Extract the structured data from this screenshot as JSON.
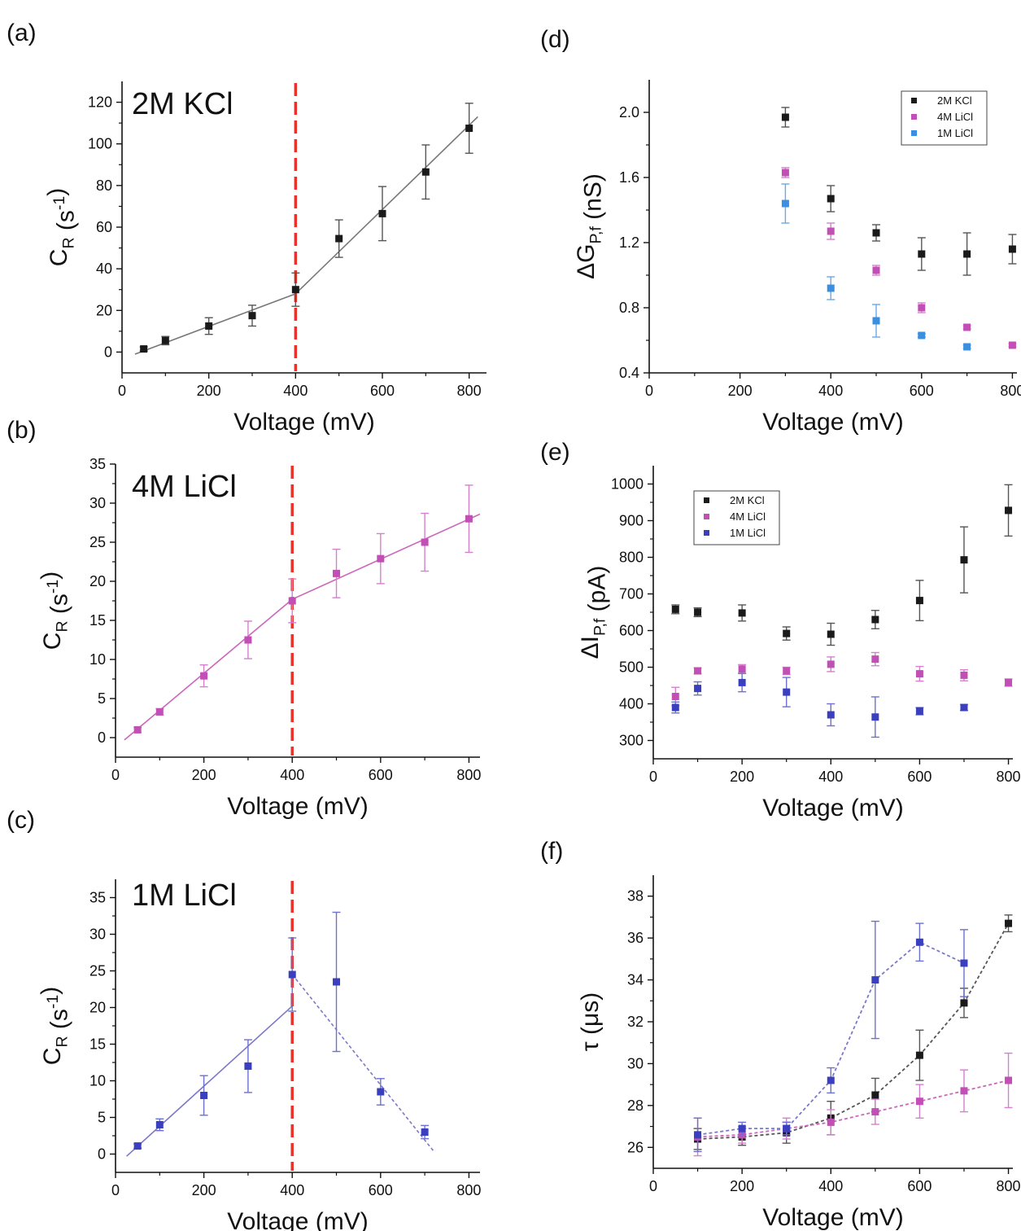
{
  "panel_labels": [
    "(a)",
    "(b)",
    "(c)",
    "(d)",
    "(e)",
    "(f)"
  ],
  "colors": {
    "black": "#1a1a1a",
    "pink": "#c24fb5",
    "pink_line": "#cc66bb",
    "blue_dark": "#3a3fbf",
    "blue_light": "#3a8fe0",
    "red_dash": "#e8322a",
    "gray_line": "#777777",
    "purple_line": "#7b78c9"
  },
  "chart_data": [
    {
      "panel": "(a)",
      "type": "scatter",
      "title": "2M KCl",
      "xlabel": "Voltage (mV)",
      "ylabel": "C_R (s^-1)",
      "xlim": [
        0,
        840
      ],
      "ylim": [
        -10,
        130
      ],
      "xticks": [
        0,
        200,
        400,
        600,
        800
      ],
      "yticks": [
        0,
        20,
        40,
        60,
        80,
        100,
        120
      ],
      "vline": 400,
      "series": [
        {
          "color": "black",
          "x": [
            50,
            100,
            200,
            300,
            400,
            500,
            600,
            700,
            800
          ],
          "y": [
            1.5,
            5.5,
            12.5,
            17.5,
            30,
            54.5,
            66.5,
            86.5,
            107.5
          ],
          "err": [
            1,
            2,
            4,
            5,
            8,
            9,
            13,
            13,
            12
          ],
          "fit": [
            [
              [
                30,
                -1
              ],
              [
                400,
                28
              ]
            ],
            [
              [
                400,
                28
              ],
              [
                820,
                113
              ]
            ]
          ]
        }
      ]
    },
    {
      "panel": "(b)",
      "type": "scatter",
      "title": "4M LiCl",
      "xlabel": "Voltage (mV)",
      "ylabel": "C_R (s^-1)",
      "xlim": [
        0,
        825
      ],
      "ylim": [
        -2.5,
        35
      ],
      "xticks": [
        0,
        200,
        400,
        600,
        800
      ],
      "yticks": [
        0,
        5,
        10,
        15,
        20,
        25,
        30,
        35
      ],
      "vline": 400,
      "series": [
        {
          "color": "pink",
          "x": [
            50,
            100,
            200,
            300,
            400,
            500,
            600,
            700,
            800
          ],
          "y": [
            1,
            3.3,
            7.9,
            12.5,
            17.5,
            21,
            22.9,
            25,
            28
          ],
          "err": [
            0.3,
            0.4,
            1.4,
            2.4,
            2.8,
            3.1,
            3.2,
            3.7,
            4.3
          ],
          "fit": [
            [
              [
                20,
                -0.3
              ],
              [
                400,
                17.7
              ]
            ],
            [
              [
                400,
                17.7
              ],
              [
                825,
                28.6
              ]
            ]
          ]
        }
      ]
    },
    {
      "panel": "(c)",
      "type": "scatter",
      "title": "1M LiCl",
      "xlabel": "Voltage (mV)",
      "ylabel": "C_R (s^-1)",
      "xlim": [
        0,
        825
      ],
      "ylim": [
        -2.5,
        37.5
      ],
      "xticks": [
        0,
        200,
        400,
        600,
        800
      ],
      "yticks": [
        0,
        5,
        10,
        15,
        20,
        25,
        30,
        35
      ],
      "vline": 400,
      "series": [
        {
          "color": "blue_dark",
          "x": [
            50,
            100,
            200,
            300,
            400,
            500,
            600,
            700
          ],
          "y": [
            1.1,
            4,
            8,
            12,
            24.5,
            23.5,
            8.5,
            3
          ],
          "err": [
            0.3,
            0.8,
            2.7,
            3.6,
            5,
            9.5,
            1.8,
            0.9
          ],
          "fit": [
            [
              [
                25,
                -0.3
              ],
              [
                400,
                20.2
              ]
            ]
          ],
          "dashed_fit": [
            [
              [
                400,
                24.5
              ],
              [
                720,
                0.4
              ]
            ]
          ]
        }
      ]
    },
    {
      "panel": "(d)",
      "type": "scatter",
      "xlabel": "Voltage (mV)",
      "ylabel": "ΔG_P,f (nS)",
      "xlim": [
        0,
        810
      ],
      "ylim": [
        0.4,
        2.2
      ],
      "xticks": [
        0,
        200,
        400,
        600,
        800
      ],
      "yticks": [
        0.4,
        0.8,
        1.2,
        1.6,
        2.0
      ],
      "ytick_labels": [
        "0.4",
        "0.8",
        "1.2",
        "1.6",
        "2.0"
      ],
      "legend_position": "top-right",
      "series": [
        {
          "name": "2M KCl",
          "color": "black",
          "x": [
            300,
            400,
            500,
            600,
            700,
            800
          ],
          "y": [
            1.97,
            1.47,
            1.26,
            1.13,
            1.13,
            1.16
          ],
          "err": [
            0.06,
            0.08,
            0.05,
            0.1,
            0.13,
            0.09
          ]
        },
        {
          "name": "4M LiCl",
          "color": "pink",
          "x": [
            300,
            400,
            500,
            600,
            700,
            800
          ],
          "y": [
            1.63,
            1.27,
            1.03,
            0.8,
            0.68,
            0.57
          ],
          "err": [
            0.03,
            0.05,
            0.03,
            0.03,
            0.01,
            0.01
          ]
        },
        {
          "name": "1M LiCl",
          "color": "blue_light",
          "x": [
            300,
            400,
            500,
            600,
            700
          ],
          "y": [
            1.44,
            0.92,
            0.72,
            0.63,
            0.56
          ],
          "err": [
            0.12,
            0.07,
            0.1,
            0.01,
            0.01
          ]
        }
      ]
    },
    {
      "panel": "(e)",
      "type": "scatter",
      "xlabel": "Voltage (mV)",
      "ylabel": "ΔI_P,f (pA)",
      "xlim": [
        0,
        810
      ],
      "ylim": [
        250,
        1050
      ],
      "xticks": [
        0,
        200,
        400,
        600,
        800
      ],
      "yticks": [
        300,
        400,
        500,
        600,
        700,
        800,
        900,
        1000
      ],
      "legend_position": "top-left",
      "series": [
        {
          "name": "2M KCl",
          "color": "black",
          "x": [
            50,
            100,
            200,
            300,
            400,
            500,
            600,
            700,
            800
          ],
          "y": [
            658,
            650,
            648,
            592,
            590,
            630,
            682,
            793,
            928
          ],
          "err": [
            12,
            12,
            22,
            18,
            30,
            25,
            55,
            90,
            70
          ]
        },
        {
          "name": "4M LiCl",
          "color": "pink",
          "x": [
            50,
            100,
            200,
            300,
            400,
            500,
            600,
            700,
            800
          ],
          "y": [
            420,
            490,
            495,
            490,
            508,
            522,
            482,
            478,
            458
          ],
          "err": [
            25,
            8,
            12,
            10,
            20,
            18,
            20,
            15,
            10
          ]
        },
        {
          "name": "1M LiCl",
          "color": "blue_dark",
          "x": [
            50,
            100,
            200,
            300,
            400,
            500,
            600,
            700
          ],
          "y": [
            390,
            442,
            458,
            432,
            370,
            364,
            380,
            390
          ],
          "err": [
            15,
            18,
            25,
            40,
            30,
            55,
            10,
            8
          ]
        }
      ]
    },
    {
      "panel": "(f)",
      "type": "line",
      "xlabel": "Voltage (mV)",
      "ylabel": "τ (μs)",
      "xlim": [
        0,
        810
      ],
      "ylim": [
        25,
        39
      ],
      "xticks": [
        0,
        200,
        400,
        600,
        800
      ],
      "yticks": [
        26,
        28,
        30,
        32,
        34,
        36,
        38
      ],
      "series": [
        {
          "color": "black",
          "x": [
            100,
            200,
            300,
            400,
            500,
            600,
            700,
            800
          ],
          "y": [
            26.4,
            26.5,
            26.7,
            27.4,
            28.5,
            30.4,
            32.9,
            36.7
          ],
          "err": [
            0.5,
            0.4,
            0.5,
            0.8,
            0.8,
            1.2,
            0.7,
            0.4
          ]
        },
        {
          "color": "pink",
          "x": [
            100,
            200,
            300,
            400,
            500,
            600,
            700,
            800
          ],
          "y": [
            26.5,
            26.6,
            26.9,
            27.2,
            27.7,
            28.2,
            28.7,
            29.2
          ],
          "err": [
            0.9,
            0.4,
            0.5,
            0.6,
            0.6,
            0.8,
            1,
            1.3
          ]
        },
        {
          "color": "blue_dark",
          "x": [
            100,
            200,
            300,
            400,
            500,
            600,
            700
          ],
          "y": [
            26.6,
            26.9,
            26.9,
            29.2,
            34,
            35.8,
            34.8
          ],
          "err": [
            0.8,
            0.3,
            0.3,
            0.6,
            2.8,
            0.9,
            1.6
          ]
        }
      ]
    }
  ]
}
